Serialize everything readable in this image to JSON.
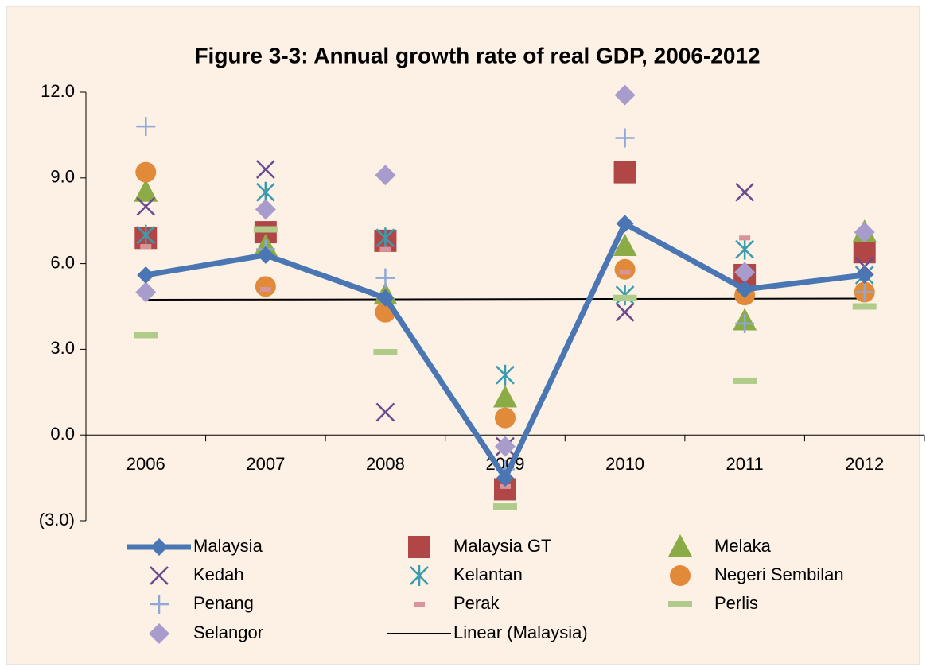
{
  "chart_data": {
    "type": "scatter",
    "title": "Figure 3-3:  Annual growth rate of real GDP, 2006-2012",
    "categories": [
      "2006",
      "2007",
      "2008",
      "2009",
      "2010",
      "2011",
      "2012"
    ],
    "ylim": [
      -3,
      12
    ],
    "yticks": [
      {
        "value": -3,
        "label": "(3.0)"
      },
      {
        "value": 0,
        "label": "0.0"
      },
      {
        "value": 3,
        "label": "3.0"
      },
      {
        "value": 6,
        "label": "6.0"
      },
      {
        "value": 9,
        "label": "9.0"
      },
      {
        "value": 12,
        "label": "12.0"
      }
    ],
    "series": [
      {
        "name": "Malaysia",
        "color": "#4a76b4",
        "marker": "line-diamond",
        "values": [
          5.6,
          6.3,
          4.8,
          -1.5,
          7.4,
          5.1,
          5.6
        ]
      },
      {
        "name": "Malaysia GT",
        "color": "#b04646",
        "marker": "square",
        "values": [
          6.9,
          7.1,
          6.8,
          -1.9,
          9.2,
          5.6,
          6.4
        ]
      },
      {
        "name": "Melaka",
        "color": "#8aab46",
        "marker": "triangle",
        "values": [
          8.5,
          6.6,
          4.9,
          1.3,
          6.6,
          4.0,
          7.1
        ]
      },
      {
        "name": "Kedah",
        "color": "#6c4a90",
        "marker": "x",
        "values": [
          8.0,
          9.3,
          0.8,
          -0.4,
          4.3,
          8.5,
          5.9
        ]
      },
      {
        "name": "Kelantan",
        "color": "#3a9cae",
        "marker": "asterisk",
        "values": [
          7.0,
          8.5,
          6.9,
          2.1,
          4.9,
          6.5,
          5.6
        ]
      },
      {
        "name": "Negeri Sembilan",
        "color": "#e08a3a",
        "marker": "circle",
        "values": [
          9.2,
          5.2,
          4.3,
          0.6,
          5.8,
          4.9,
          5.0
        ]
      },
      {
        "name": "Penang",
        "color": "#8ea8d8",
        "marker": "plus",
        "values": [
          10.8,
          6.5,
          5.5,
          -1.2,
          10.4,
          3.9,
          5.0
        ]
      },
      {
        "name": "Perak",
        "color": "#d8949a",
        "marker": "short-dash",
        "values": [
          6.6,
          5.1,
          6.5,
          -1.8,
          5.7,
          6.9,
          7.1
        ]
      },
      {
        "name": "Perlis",
        "color": "#b0cc8a",
        "marker": "dash",
        "values": [
          3.5,
          7.2,
          2.9,
          -2.5,
          4.8,
          1.9,
          4.5
        ]
      },
      {
        "name": "Selangor",
        "color": "#a89ccc",
        "marker": "diamond",
        "values": [
          5.0,
          7.9,
          9.1,
          -0.4,
          11.9,
          5.7,
          7.1
        ]
      }
    ],
    "trendline": {
      "name": "Linear (Malaysia)",
      "color": "#000000",
      "of_series": 0
    }
  }
}
